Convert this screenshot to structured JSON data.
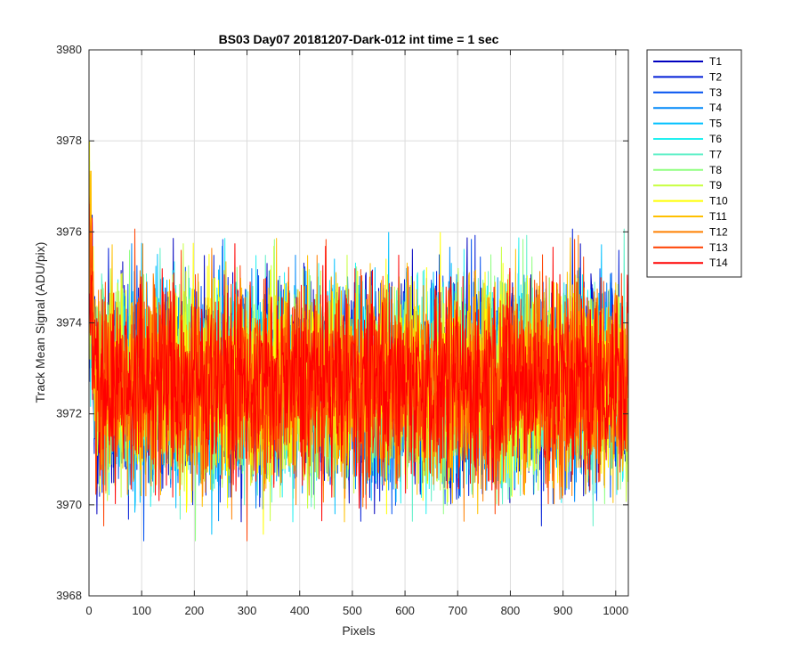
{
  "chart_data": {
    "type": "line",
    "title": "BS03 Day07 20181207-Dark-012 int time = 1 sec",
    "xlabel": "Pixels",
    "ylabel": "Track Mean Signal (ADU/pix)",
    "xlim": [
      0,
      1024
    ],
    "ylim": [
      3968,
      3980
    ],
    "xticks": [
      0,
      100,
      200,
      300,
      400,
      500,
      600,
      700,
      800,
      900,
      1000
    ],
    "yticks": [
      3968,
      3970,
      3972,
      3974,
      3976,
      3978,
      3980
    ],
    "grid": true,
    "legend_position": "outside-top-right",
    "noise_model": {
      "n_points": 1024,
      "mean": 3972.7,
      "spread": 1.1,
      "edge_start_value": 3976.5
    },
    "series": [
      {
        "name": "T1",
        "color": "#0000bf"
      },
      {
        "name": "T2",
        "color": "#001cd7"
      },
      {
        "name": "T3",
        "color": "#0050f0"
      },
      {
        "name": "T4",
        "color": "#0088f8"
      },
      {
        "name": "T5",
        "color": "#00c0ff"
      },
      {
        "name": "T6",
        "color": "#22f0f0"
      },
      {
        "name": "T7",
        "color": "#60f0c8"
      },
      {
        "name": "T8",
        "color": "#90ff80"
      },
      {
        "name": "T9",
        "color": "#c8ff40"
      },
      {
        "name": "T10",
        "color": "#ffff00"
      },
      {
        "name": "T11",
        "color": "#ffc000"
      },
      {
        "name": "T12",
        "color": "#ff8000"
      },
      {
        "name": "T13",
        "color": "#ff4000"
      },
      {
        "name": "T14",
        "color": "#ff0000"
      }
    ]
  }
}
